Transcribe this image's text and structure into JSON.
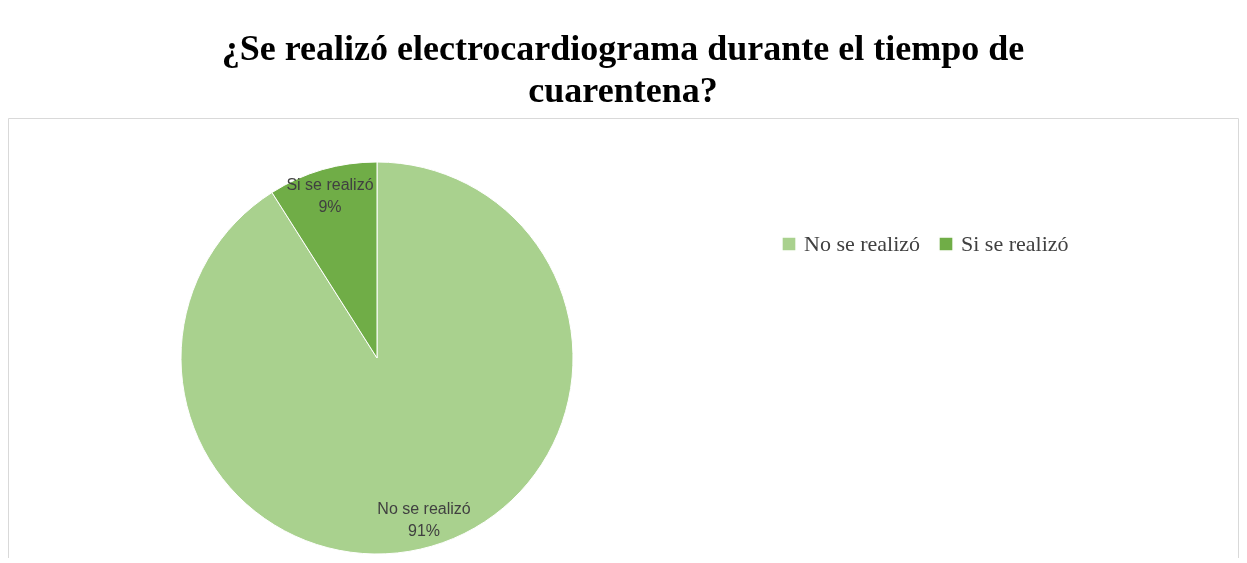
{
  "chart_data": {
    "type": "pie",
    "title": "¿Se realizó electrocardiograma durante el tiempo de cuarentena?",
    "categories": [
      "No se realizó",
      "Si se realizó"
    ],
    "values": [
      91,
      9
    ],
    "value_labels": [
      "91%",
      "9%"
    ],
    "colors": [
      "#a9d18e",
      "#70ad47"
    ],
    "legend": "right"
  }
}
